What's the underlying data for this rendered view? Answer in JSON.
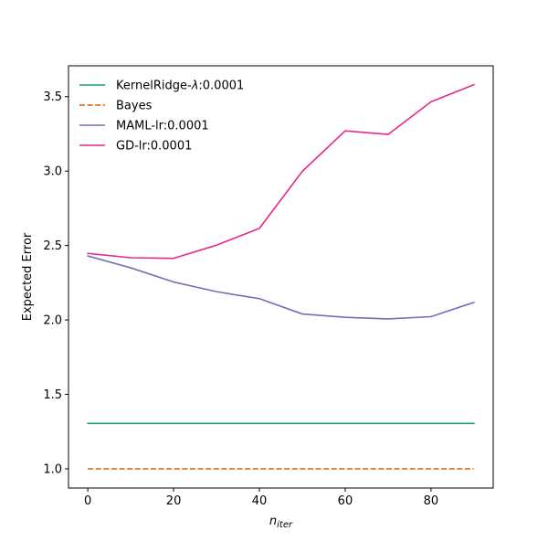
{
  "chart_data": {
    "type": "line",
    "xlabel_base": "n",
    "xlabel_sub": "iter",
    "ylabel": "Expected Error",
    "xlim": [
      -4.5,
      94.5
    ],
    "ylim": [
      0.871,
      3.707
    ],
    "x_ticks": [
      0,
      20,
      40,
      60,
      80
    ],
    "x_tick_labels": [
      "0",
      "20",
      "40",
      "60",
      "80"
    ],
    "y_ticks": [
      1.0,
      1.5,
      2.0,
      2.5,
      3.0,
      3.5
    ],
    "y_tick_labels": [
      "1.0",
      "1.5",
      "2.0",
      "2.5",
      "3.0",
      "3.5"
    ],
    "grid": false,
    "legend_position": "upper-left",
    "x": [
      0,
      10,
      20,
      30,
      40,
      50,
      60,
      70,
      80,
      90
    ],
    "series": [
      {
        "name": "KernelRidge-λ:0.0001",
        "name_prefix": "KernelRidge-",
        "name_symbol": "λ",
        "name_suffix": ":0.0001",
        "color": "#1b9e77",
        "dash": "solid",
        "values": [
          1.305,
          1.305,
          1.305,
          1.305,
          1.305,
          1.305,
          1.305,
          1.305,
          1.305,
          1.305
        ]
      },
      {
        "name": "Bayes",
        "color": "#d95f02",
        "dash": "dashed",
        "values": [
          1.0,
          1.0,
          1.0,
          1.0,
          1.0,
          1.0,
          1.0,
          1.0,
          1.0,
          1.0
        ]
      },
      {
        "name": "MAML-lr:0.0001",
        "color": "#7570b3",
        "dash": "solid",
        "values": [
          2.43,
          2.35,
          2.255,
          2.19,
          2.143,
          2.04,
          2.018,
          2.007,
          2.022,
          2.118
        ]
      },
      {
        "name": "GD-lr:0.0001",
        "color": "#e7298a",
        "dash": "solid",
        "values": [
          2.447,
          2.418,
          2.414,
          2.502,
          2.615,
          2.998,
          3.27,
          3.246,
          3.465,
          3.58
        ]
      }
    ]
  }
}
